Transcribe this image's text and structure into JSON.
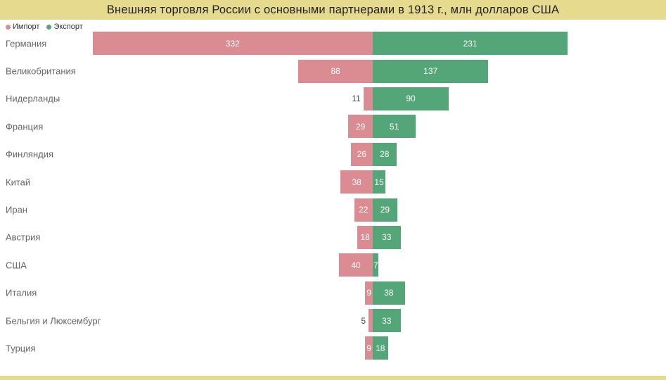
{
  "title": "Внешняя торговля России с основными партнерами в 1913 г., млн долларов США",
  "legend": {
    "import_label": "Импорт",
    "export_label": "Экспорт"
  },
  "colors": {
    "header_bg": "#e5da8e",
    "import": "#db8c93",
    "export": "#54a679",
    "category_text": "#666666",
    "outside_value_text": "#4a4a4a",
    "title_text": "#212121"
  },
  "chart_data": {
    "type": "bar",
    "orientation": "diverging-horizontal",
    "title": "Внешняя торговля России с основными партнерами в 1913 г., млн долларов США",
    "unit": "млн долларов США",
    "legend_position": "top-left",
    "grid": false,
    "categories": [
      "Германия",
      "Великобритания",
      "Нидерланды",
      "Франция",
      "Финляндия",
      "Китай",
      "Иран",
      "Австрия",
      "США",
      "Италия",
      "Бельгия и Люксембург",
      "Турция"
    ],
    "series": [
      {
        "name": "Импорт",
        "values": [
          332,
          88,
          11,
          29,
          26,
          38,
          22,
          18,
          40,
          9,
          5,
          9
        ]
      },
      {
        "name": "Экспорт",
        "values": [
          231,
          137,
          90,
          51,
          28,
          15,
          29,
          33,
          7,
          38,
          33,
          18
        ]
      }
    ]
  }
}
